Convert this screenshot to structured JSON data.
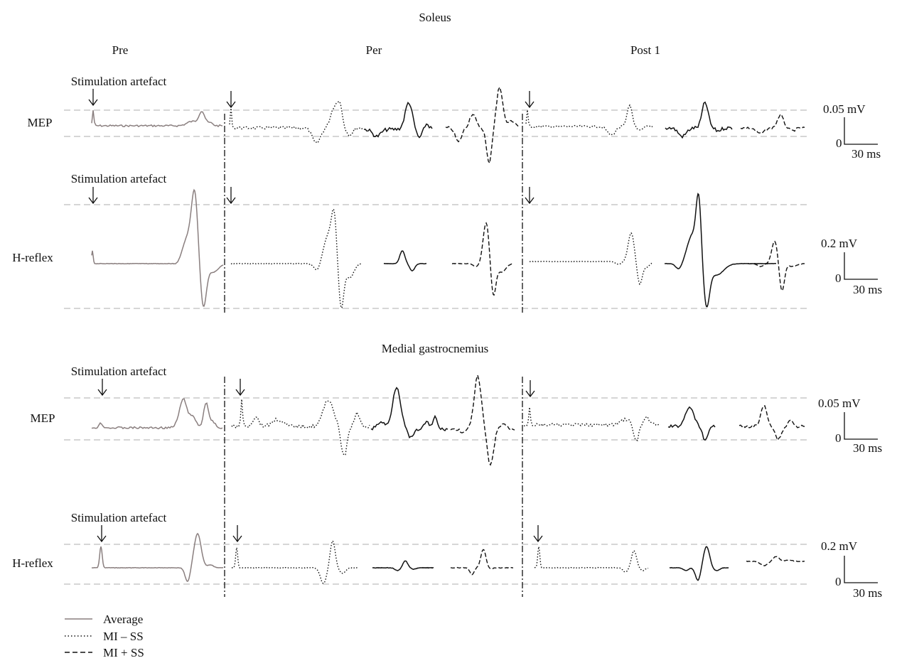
{
  "titles": {
    "soleus": "Soleus",
    "gastrocnemius": "Medial gastrocnemius"
  },
  "columns": {
    "pre": "Pre",
    "per": "Per",
    "post": "Post 1"
  },
  "rows": {
    "mep": "MEP",
    "hreflex": "H-reflex"
  },
  "annotations": {
    "artefact": "Stimulation artefact"
  },
  "scales": {
    "mep_amp": "0.05 mV",
    "h_amp": "0.2 mV",
    "zero": "0",
    "time": "30 ms"
  },
  "legend": [
    {
      "label": "Average",
      "style": "solid",
      "color": "#8a7f7f"
    },
    {
      "label": "MI – SS",
      "style": "dotted",
      "color": "#111111"
    },
    {
      "label": "MI + SS",
      "style": "dashed",
      "color": "#111111"
    }
  ],
  "colors": {
    "average": "#8a7f7f",
    "trace": "#111111",
    "guide": "#c8c8c8"
  }
}
